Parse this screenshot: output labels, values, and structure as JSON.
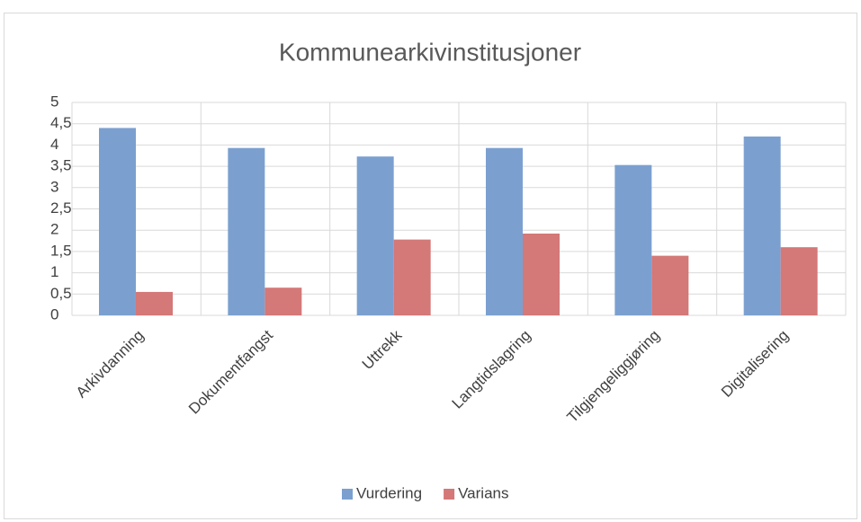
{
  "chart_data": {
    "type": "bar",
    "title": "Kommunearkivinstitusjoner",
    "categories": [
      "Arkivdanning",
      "Dokumentfangst",
      "Uttrekk",
      "Langtidslagring",
      "Tilgjengeliggjøring",
      "Digitalisering"
    ],
    "series": [
      {
        "name": "Vurdering",
        "color": "#7ba0d0",
        "values": [
          4.4,
          3.93,
          3.73,
          3.93,
          3.53,
          4.2
        ]
      },
      {
        "name": "Varians",
        "color": "#d47878",
        "values": [
          0.55,
          0.65,
          1.78,
          1.92,
          1.4,
          1.6
        ]
      }
    ],
    "ylim": [
      0,
      5
    ],
    "yticks": [
      0,
      {
        "value": 0.5,
        "label": "0,5"
      },
      1,
      {
        "value": 1.5,
        "label": "1,5"
      },
      2,
      {
        "value": 2.5,
        "label": "2,5"
      },
      3,
      {
        "value": 3.5,
        "label": "3,5"
      },
      4,
      {
        "value": 4.5,
        "label": "4,5"
      },
      5
    ],
    "grid": true,
    "legend": "bottom"
  }
}
